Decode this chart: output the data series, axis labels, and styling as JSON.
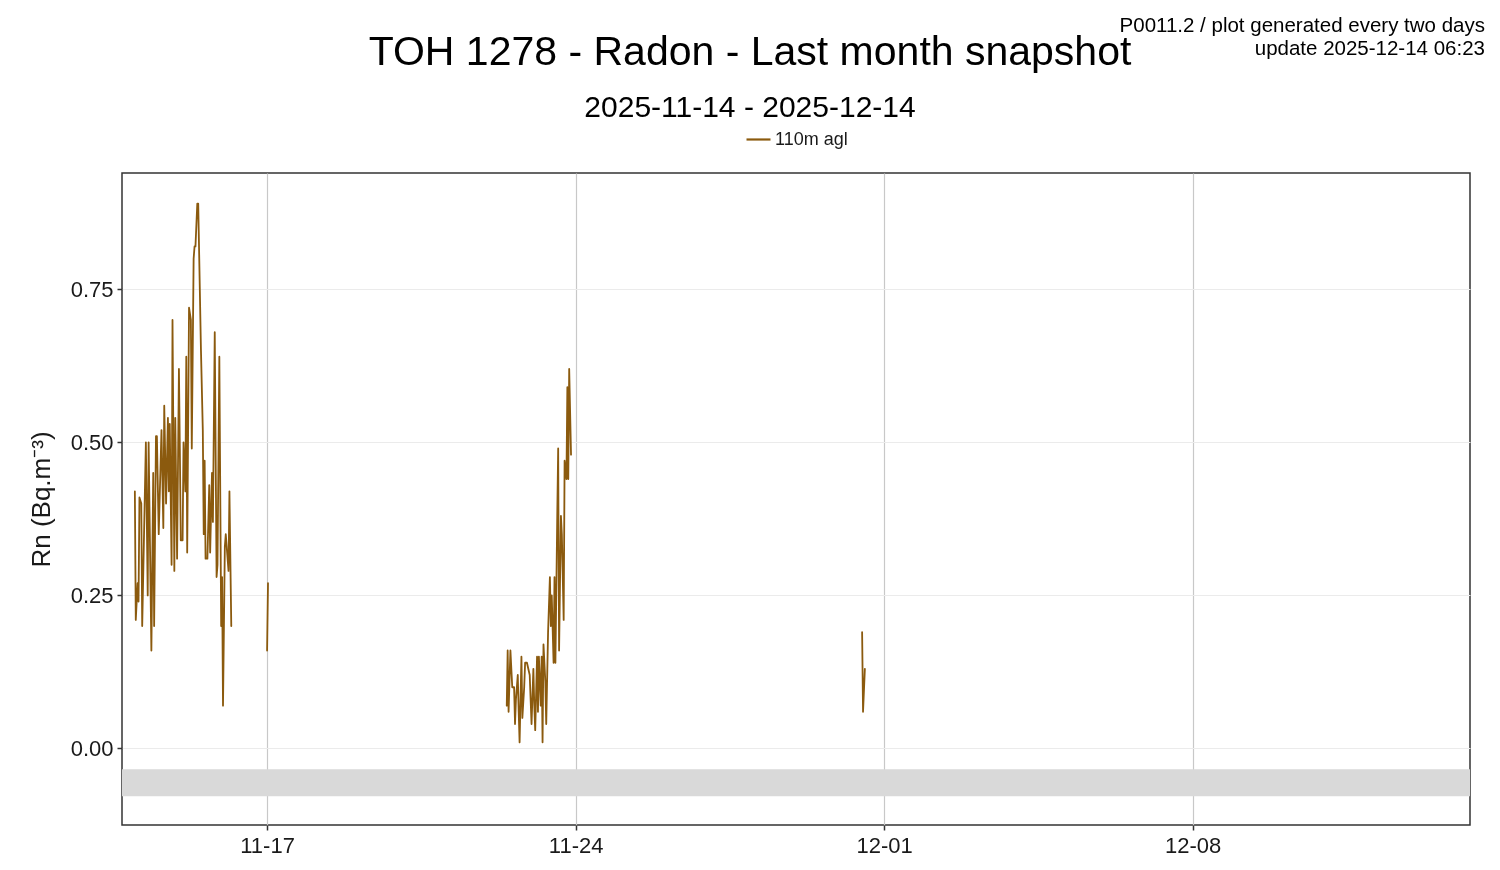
{
  "chart_data": {
    "type": "line",
    "title": "TOH 1278 - Radon - Last month snapshot",
    "subtitle": "2025-11-14 - 2025-12-14",
    "ylabel": "Rn (Bq.m⁻³)",
    "annotations": [
      "P0011.2 / plot generated every two days",
      "update  2025-12-14 06:23"
    ],
    "x": [
      "2025-11-14T00:00",
      "2025-11-14T00:30",
      "2025-11-14T01:30",
      "2025-11-14T02:00",
      "2025-11-14T02:30",
      "2025-11-14T03:30",
      "2025-11-14T04:00",
      "2025-11-14T06:00",
      "2025-11-14T07:00",
      "2025-11-14T07:30",
      "2025-11-14T09:00",
      "2025-11-14T10:00",
      "2025-11-14T10:30",
      "2025-11-14T11:30",
      "2025-11-14T12:00",
      "2025-11-14T13:00",
      "2025-11-14T14:30",
      "2025-11-14T15:30",
      "2025-11-14T16:00",
      "2025-11-14T17:00",
      "2025-11-14T18:00",
      "2025-11-14T18:30",
      "2025-11-14T19:00",
      "2025-11-14T20:00",
      "2025-11-14T20:30",
      "2025-11-14T21:30",
      "2025-11-14T22:00",
      "2025-11-14T23:00",
      "2025-11-15T00:00",
      "2025-11-15T00:30",
      "2025-11-15T01:00",
      "2025-11-15T02:00",
      "2025-11-15T02:30",
      "2025-11-15T03:30",
      "2025-11-15T04:00",
      "2025-11-15T04:30",
      "2025-11-15T05:30",
      "2025-11-15T06:30",
      "2025-11-15T07:00",
      "2025-11-15T08:00",
      "2025-11-15T08:30",
      "2025-11-15T09:00",
      "2025-11-15T10:00",
      "2025-11-15T10:30",
      "2025-11-15T12:00",
      "2025-11-15T13:00",
      "2025-11-15T13:30",
      "2025-11-15T14:00",
      "2025-11-15T14:30",
      "2025-11-15T15:30",
      "2025-11-15T16:30",
      "2025-11-15T17:00",
      "2025-11-15T18:00",
      "2025-11-15T18:30",
      "2025-11-15T19:30",
      "2025-11-15T20:30",
      "2025-11-15T21:00",
      "2025-11-15T22:00",
      "2025-11-15T23:00",
      "2025-11-15T23:30",
      "2025-11-16T00:00",
      "2025-11-16T01:00",
      "2025-11-16T01:30",
      "2025-11-16T03:00",
      "2025-11-16T03:30",
      "2025-11-16T04:30",
      "2025-11-16T05:00",
      "2025-11-17T00:00",
      "2025-11-17T00:30",
      "2025-11-17T01:00",
      "2025-11-22T10:30",
      "2025-11-22T11:00",
      "2025-11-22T11:30",
      "2025-11-22T12:30",
      "2025-11-22T13:30",
      "2025-11-22T14:30",
      "2025-11-22T15:00",
      "2025-11-22T15:30",
      "2025-11-22T16:30",
      "2025-11-22T17:00",
      "2025-11-22T17:30",
      "2025-11-22T18:30",
      "2025-11-22T19:00",
      "2025-11-22T20:00",
      "2025-11-22T20:30",
      "2025-11-22T21:30",
      "2025-11-22T23:00",
      "2025-11-23T00:00",
      "2025-11-23T01:00",
      "2025-11-23T01:30",
      "2025-11-23T02:00",
      "2025-11-23T03:00",
      "2025-11-23T03:30",
      "2025-11-23T04:00",
      "2025-11-23T05:00",
      "2025-11-23T05:30",
      "2025-11-23T06:00",
      "2025-11-23T06:30",
      "2025-11-23T07:30",
      "2025-11-23T08:00",
      "2025-11-23T09:00",
      "2025-11-23T10:00",
      "2025-11-23T10:30",
      "2025-11-23T11:00",
      "2025-11-23T12:00",
      "2025-11-23T12:30",
      "2025-11-23T13:00",
      "2025-11-23T14:00",
      "2025-11-23T14:30",
      "2025-11-23T15:00",
      "2025-11-23T16:00",
      "2025-11-23T16:30",
      "2025-11-23T17:30",
      "2025-11-23T18:00",
      "2025-11-23T19:00",
      "2025-11-23T19:30",
      "2025-11-23T20:00",
      "2025-11-23T20:30",
      "2025-11-23T21:30",
      "2025-11-23T22:00",
      "2025-11-30T12:00",
      "2025-11-30T12:30",
      "2025-11-30T13:30"
    ],
    "series": [
      {
        "name": "110m agl",
        "color": "#8b5a0e",
        "values": [
          0.42,
          0.21,
          0.27,
          0.24,
          0.41,
          0.4,
          0.2,
          0.5,
          0.25,
          0.5,
          0.16,
          0.45,
          0.2,
          0.51,
          0.51,
          0.35,
          0.52,
          0.36,
          0.56,
          0.4,
          0.54,
          0.42,
          0.53,
          0.3,
          0.7,
          0.29,
          0.54,
          0.31,
          0.62,
          0.49,
          0.34,
          0.34,
          0.5,
          0.42,
          0.64,
          0.32,
          0.72,
          0.7,
          0.49,
          0.8,
          0.82,
          0.82,
          0.89,
          0.89,
          0.65,
          0.52,
          0.35,
          0.47,
          0.31,
          0.31,
          0.43,
          0.32,
          0.45,
          0.37,
          0.68,
          0.28,
          0.3,
          0.64,
          0.2,
          0.28,
          0.07,
          0.33,
          0.35,
          0.29,
          0.42,
          0.2,
          null,
          0.16,
          0.27,
          null,
          0.07,
          0.16,
          0.06,
          0.16,
          0.1,
          0.1,
          0.04,
          0.08,
          0.12,
          0.06,
          0.01,
          0.15,
          0.05,
          0.1,
          0.14,
          0.14,
          0.12,
          0.04,
          0.13,
          0.07,
          0.03,
          0.15,
          0.06,
          0.15,
          0.07,
          0.15,
          0.01,
          0.17,
          0.11,
          0.04,
          0.19,
          0.28,
          0.2,
          0.25,
          0.14,
          0.28,
          0.14,
          0.38,
          0.49,
          0.16,
          0.38,
          0.35,
          0.21,
          0.47,
          0.44,
          0.59,
          0.44,
          0.62,
          0.48,
          null,
          0.19,
          0.06,
          0.13
        ]
      }
    ],
    "xlim": [
      "2025-11-13T17:00",
      "2025-12-14T07:00"
    ],
    "ylim": [
      -0.125,
      0.94
    ],
    "xticks": [
      {
        "value": "2025-11-17",
        "label": "11-17"
      },
      {
        "value": "2025-11-24",
        "label": "11-24"
      },
      {
        "value": "2025-12-01",
        "label": "12-01"
      },
      {
        "value": "2025-12-08",
        "label": "12-08"
      }
    ],
    "yticks": [
      {
        "value": 0,
        "label": "0.00"
      },
      {
        "value": 0.25,
        "label": "0.25"
      },
      {
        "value": 0.5,
        "label": "0.50"
      },
      {
        "value": 0.75,
        "label": "0.75"
      }
    ],
    "bands": [
      {
        "axis": "y",
        "from": -0.078,
        "to": -0.034,
        "color": "#d9d9d9"
      }
    ],
    "grid": true,
    "legend": "top",
    "line_style": "solid"
  }
}
